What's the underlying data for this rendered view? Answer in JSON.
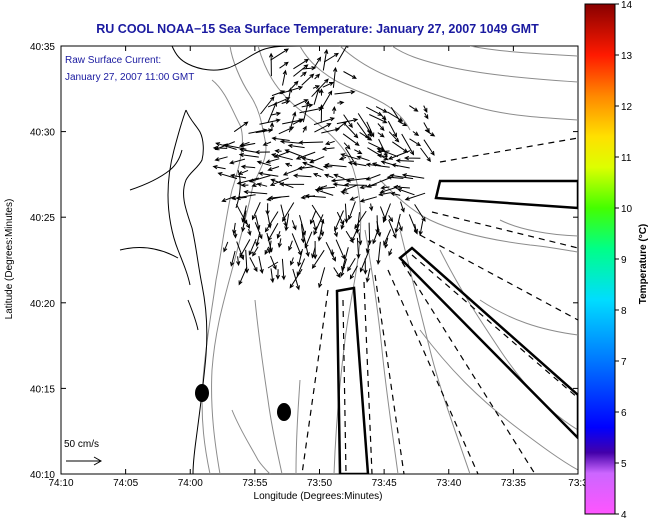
{
  "title": "RU COOL  NOAA−15  Sea Surface Temperature:  January 27, 2007 1049 GMT",
  "annotation": {
    "line1": "Raw Surface Current:",
    "line2": "January 27, 2007 11:00 GMT"
  },
  "scale_label": "50 cm/s",
  "axes": {
    "xlabel": "Longitude (Degrees:Minutes)",
    "ylabel": "Latitude (Degrees:Minutes)",
    "xticks": [
      "74:10",
      "74:05",
      "74:00",
      "73:55",
      "73:50",
      "73:45",
      "73:40",
      "73:35",
      "73:3"
    ],
    "yticks": [
      "40:35",
      "40:30",
      "40:25",
      "40:20",
      "40:15",
      "40:10"
    ]
  },
  "colorbar": {
    "label": "Temperature (°C)",
    "ticks": [
      "14",
      "13",
      "12",
      "11",
      "10",
      "9",
      "8",
      "7",
      "6",
      "5",
      "4"
    ],
    "range": [
      4,
      14
    ]
  },
  "colors": {
    "title": "#1a1aa0",
    "coast": "#000000",
    "contour": "#8c8c8c"
  },
  "markers": [
    {
      "name": "site-1",
      "lon": "74:00",
      "lat": "40:14:45"
    },
    {
      "name": "site-2",
      "lon": "73:53",
      "lat": "40:13:30"
    }
  ]
}
